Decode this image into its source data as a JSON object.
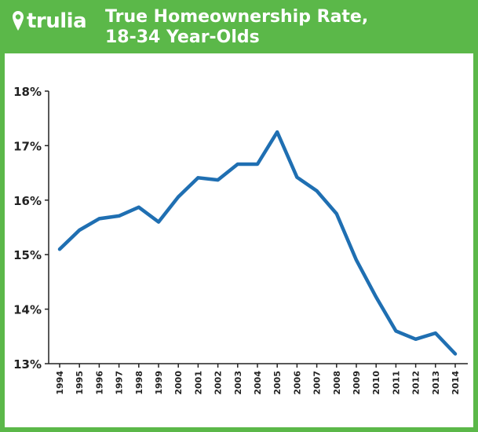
{
  "brand": {
    "name": "trulia"
  },
  "colors": {
    "frame": "#5bb849",
    "line": "#1f6fb2",
    "axis": "#222222"
  },
  "icons": {
    "logo_mark": "map-pin-icon"
  },
  "chart_data": {
    "type": "line",
    "title": "True Homeownership Rate,",
    "subtitle": "18-34 Year-Olds",
    "xlabel": "",
    "ylabel": "",
    "categories": [
      "1994",
      "1995",
      "1996",
      "1997",
      "1998",
      "1999",
      "2000",
      "2001",
      "2002",
      "2003",
      "2004",
      "2005",
      "2006",
      "2007",
      "2008",
      "2009",
      "2010",
      "2011",
      "2012",
      "2013",
      "2014"
    ],
    "values": [
      15.1,
      15.45,
      15.66,
      15.71,
      15.87,
      15.6,
      16.06,
      16.41,
      16.37,
      16.66,
      16.66,
      17.25,
      16.42,
      16.17,
      15.75,
      14.9,
      14.22,
      13.6,
      13.45,
      13.56,
      13.18
    ],
    "ylim": [
      13,
      18
    ],
    "yticks": [
      "13%",
      "14%",
      "15%",
      "16%",
      "17%",
      "18%"
    ],
    "grid": false,
    "legend": "none"
  }
}
